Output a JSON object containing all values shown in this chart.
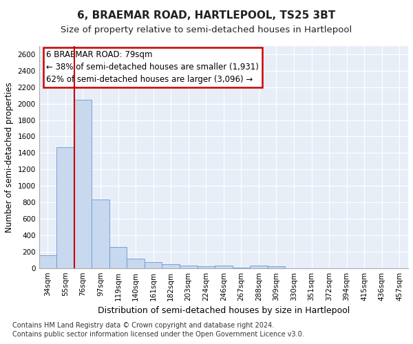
{
  "title": "6, BRAEMAR ROAD, HARTLEPOOL, TS25 3BT",
  "subtitle": "Size of property relative to semi-detached houses in Hartlepool",
  "xlabel": "Distribution of semi-detached houses by size in Hartlepool",
  "ylabel": "Number of semi-detached properties",
  "categories": [
    "34sqm",
    "55sqm",
    "76sqm",
    "97sqm",
    "119sqm",
    "140sqm",
    "161sqm",
    "182sqm",
    "203sqm",
    "224sqm",
    "246sqm",
    "267sqm",
    "288sqm",
    "309sqm",
    "330sqm",
    "351sqm",
    "372sqm",
    "394sqm",
    "415sqm",
    "436sqm",
    "457sqm"
  ],
  "values": [
    155,
    1470,
    2050,
    835,
    255,
    115,
    70,
    45,
    30,
    25,
    30,
    10,
    30,
    20,
    0,
    0,
    0,
    0,
    0,
    0,
    0
  ],
  "bar_color": "#c8d8ef",
  "bar_edge_color": "#6699cc",
  "vline_x_index": 2,
  "vline_color": "#cc0000",
  "annotation_text": "6 BRAEMAR ROAD: 79sqm\n← 38% of semi-detached houses are smaller (1,931)\n62% of semi-detached houses are larger (3,096) →",
  "annotation_box_color": "#ffffff",
  "annotation_box_edge": "#cc0000",
  "ylim": [
    0,
    2700
  ],
  "yticks": [
    0,
    200,
    400,
    600,
    800,
    1000,
    1200,
    1400,
    1600,
    1800,
    2000,
    2200,
    2400,
    2600
  ],
  "footnote1": "Contains HM Land Registry data © Crown copyright and database right 2024.",
  "footnote2": "Contains public sector information licensed under the Open Government Licence v3.0.",
  "title_fontsize": 11,
  "subtitle_fontsize": 9.5,
  "xlabel_fontsize": 9,
  "ylabel_fontsize": 8.5,
  "tick_fontsize": 7.5,
  "annot_fontsize": 8.5,
  "footnote_fontsize": 7,
  "bg_color": "#ffffff",
  "plot_bg_color": "#e8eef8",
  "grid_color": "#ffffff"
}
